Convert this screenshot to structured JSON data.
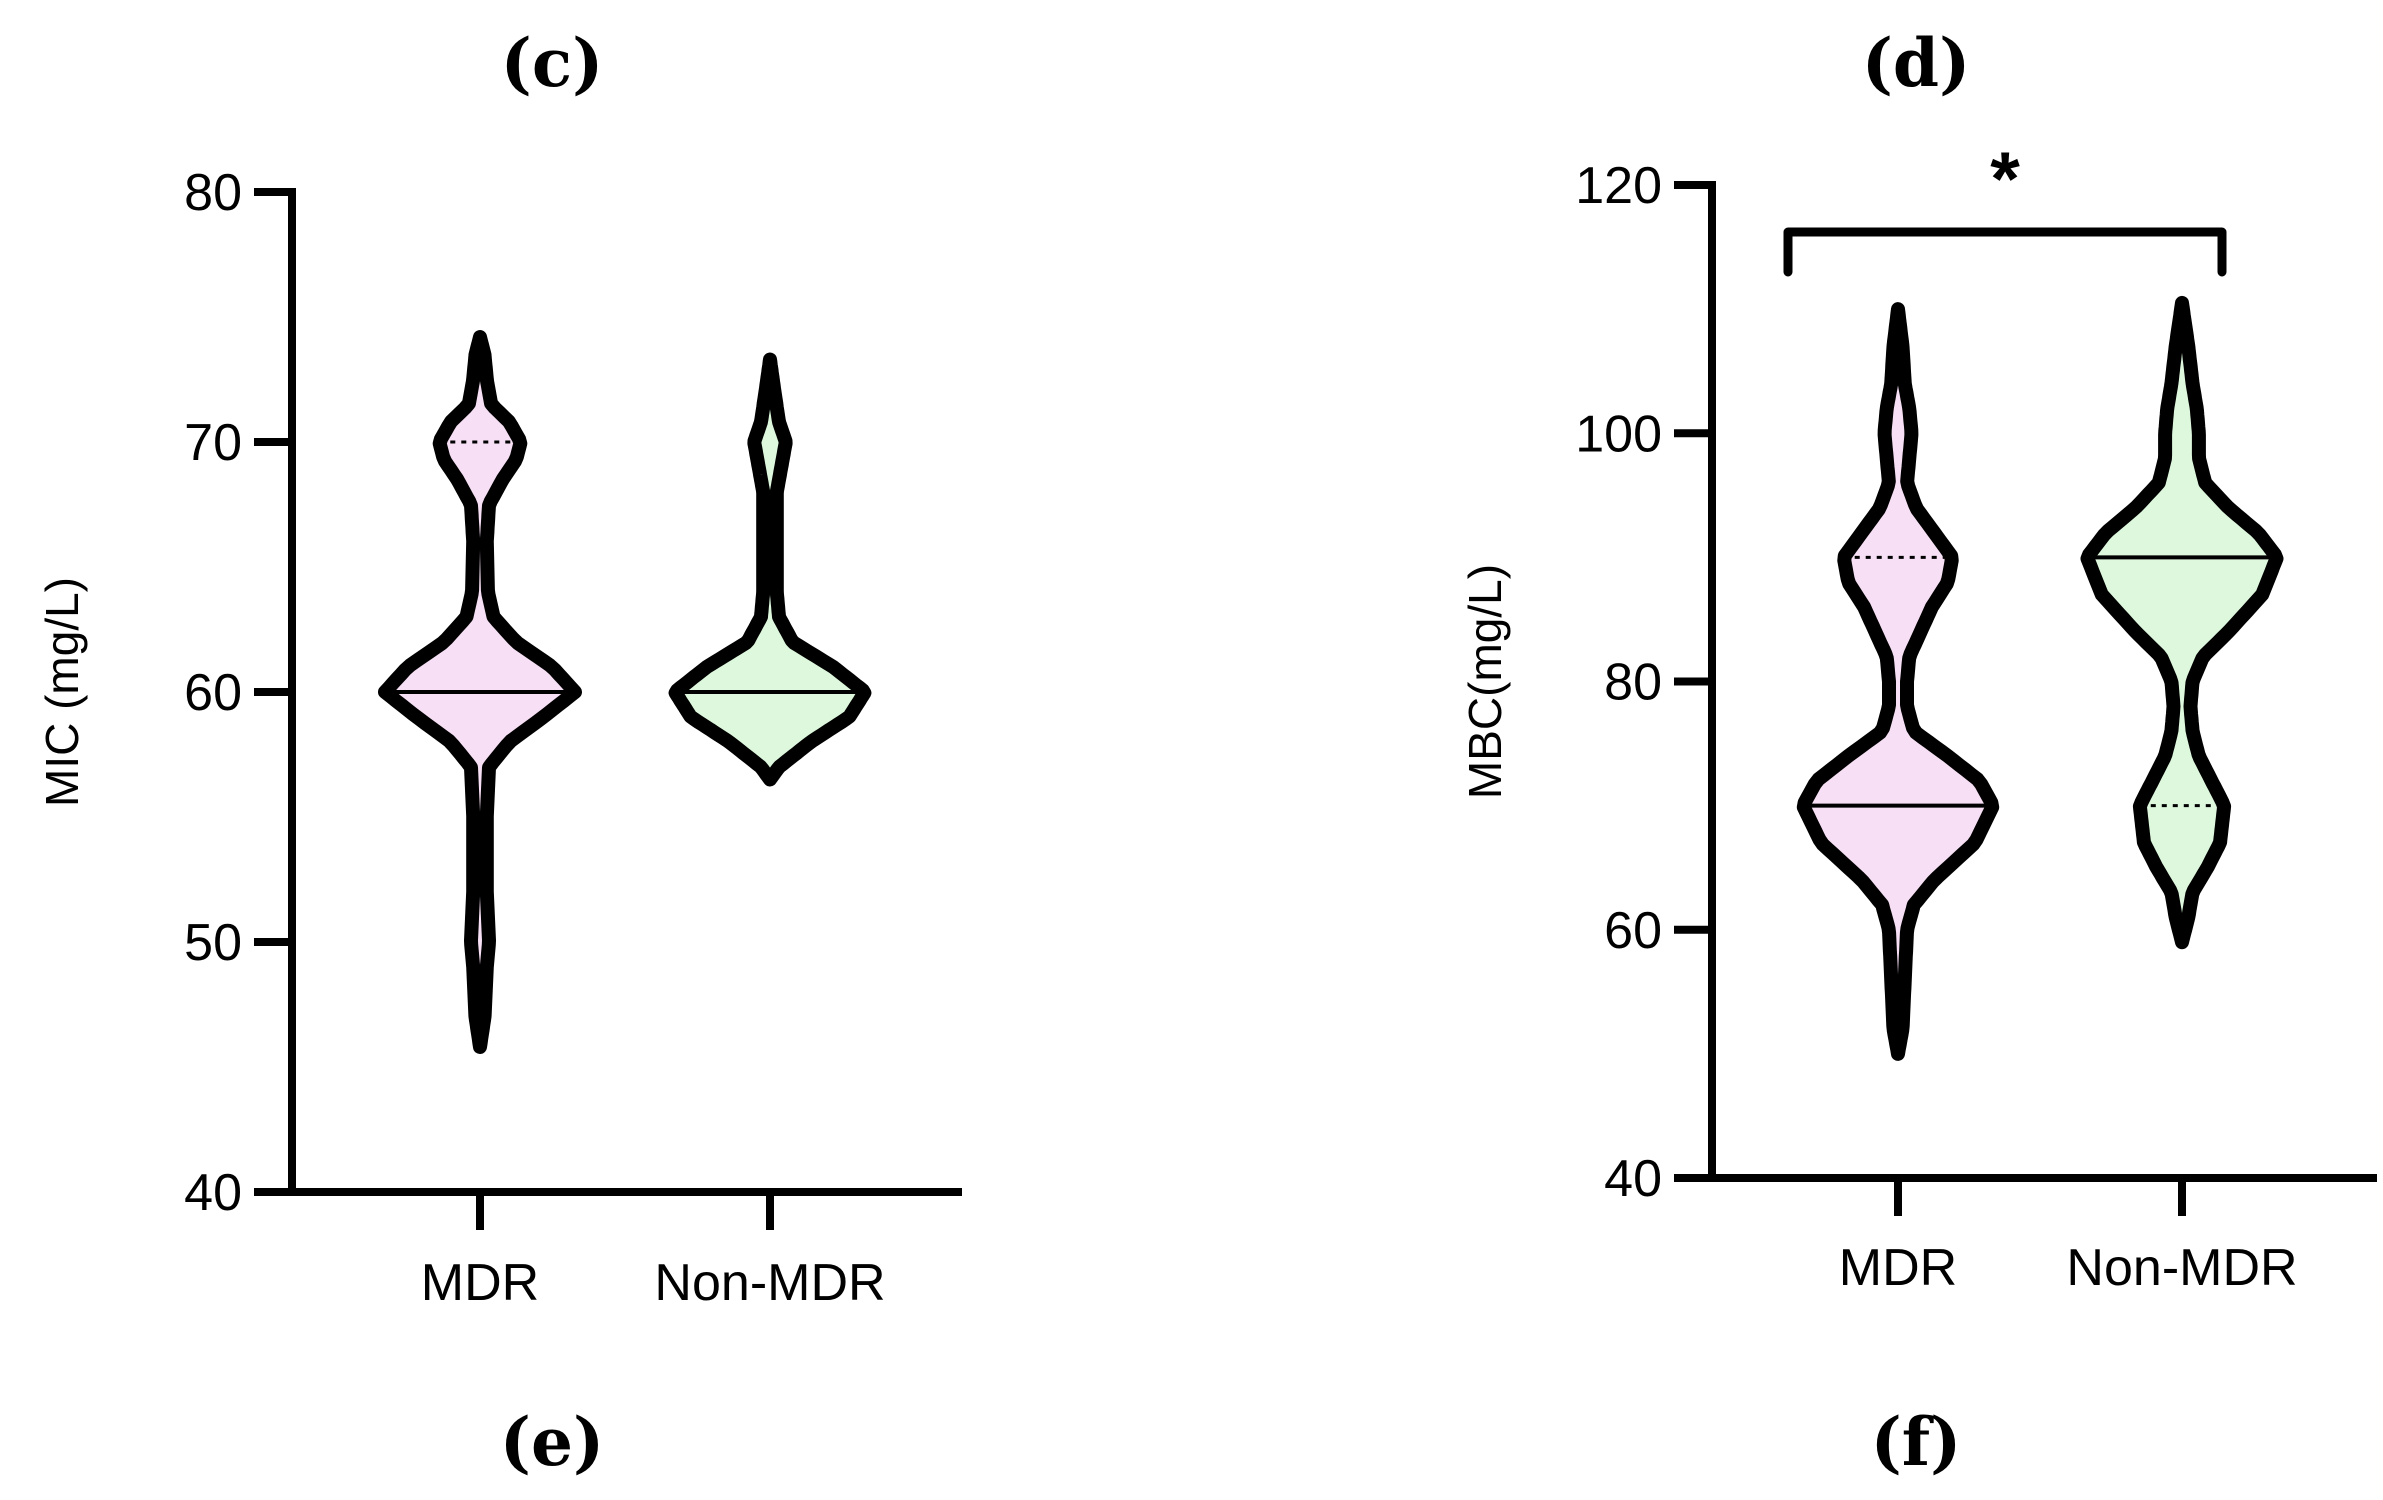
{
  "panel_labels": {
    "top_left": "(c)",
    "top_right": "(d)",
    "bottom_left": "(e)",
    "bottom_right": "(f)"
  },
  "colors": {
    "mdr_fill": "#f7e0f5",
    "non_mdr_fill": "#def8de",
    "outline": "#000000"
  },
  "chart_data": [
    {
      "type": "violin",
      "ylabel": "MIC (mg/L)",
      "xlabel": "",
      "ylim": [
        40,
        80
      ],
      "yticks": [
        40,
        50,
        60,
        70,
        80
      ],
      "categories": [
        "MDR",
        "Non-MDR"
      ],
      "significance": "",
      "series": [
        {
          "name": "MDR",
          "range": [
            45.8,
            74.2
          ],
          "median": 60,
          "quartiles": [
            60,
            70
          ],
          "density": [
            [
              45.8,
              0
            ],
            [
              47,
              0.02
            ],
            [
              49,
              0.03
            ],
            [
              50,
              0.04
            ],
            [
              52,
              0.03
            ],
            [
              55,
              0.03
            ],
            [
              57,
              0.04
            ],
            [
              58,
              0.13
            ],
            [
              59,
              0.28
            ],
            [
              60,
              0.42
            ],
            [
              61,
              0.32
            ],
            [
              62,
              0.16
            ],
            [
              63,
              0.06
            ],
            [
              64,
              0.035
            ],
            [
              66,
              0.03
            ],
            [
              67.5,
              0.04
            ],
            [
              68.5,
              0.1
            ],
            [
              69.3,
              0.16
            ],
            [
              70,
              0.18
            ],
            [
              70.8,
              0.13
            ],
            [
              71.5,
              0.05
            ],
            [
              72.5,
              0.03
            ],
            [
              73.5,
              0.02
            ],
            [
              74.2,
              0
            ]
          ]
        },
        {
          "name": "Non-MDR",
          "range": [
            56.5,
            73.3
          ],
          "median": 60,
          "quartiles": [
            60,
            60
          ],
          "density": [
            [
              56.5,
              0
            ],
            [
              57,
              0.04
            ],
            [
              58,
              0.18
            ],
            [
              59,
              0.35
            ],
            [
              60,
              0.42
            ],
            [
              61,
              0.28
            ],
            [
              62,
              0.1
            ],
            [
              63,
              0.04
            ],
            [
              64,
              0.03
            ],
            [
              66,
              0.03
            ],
            [
              68,
              0.03
            ],
            [
              69,
              0.05
            ],
            [
              70,
              0.07
            ],
            [
              70.8,
              0.04
            ],
            [
              72,
              0.02
            ],
            [
              73.3,
              0
            ]
          ]
        }
      ]
    },
    {
      "type": "violin",
      "ylabel": "MBC(mg/L)",
      "xlabel": "",
      "ylim": [
        40,
        120
      ],
      "yticks": [
        40,
        60,
        80,
        100,
        120
      ],
      "categories": [
        "MDR",
        "Non-MDR"
      ],
      "significance": "*",
      "series": [
        {
          "name": "MDR",
          "range": [
            50,
            110
          ],
          "median": 70,
          "quartiles": [
            70,
            90
          ],
          "density": [
            [
              50,
              0
            ],
            [
              52,
              0.02
            ],
            [
              56,
              0.03
            ],
            [
              60,
              0.04
            ],
            [
              62,
              0.07
            ],
            [
              64,
              0.16
            ],
            [
              67,
              0.34
            ],
            [
              70,
              0.42
            ],
            [
              72,
              0.36
            ],
            [
              74,
              0.22
            ],
            [
              76,
              0.07
            ],
            [
              78,
              0.04
            ],
            [
              80,
              0.04
            ],
            [
              82,
              0.05
            ],
            [
              84,
              0.1
            ],
            [
              86,
              0.15
            ],
            [
              88,
              0.22
            ],
            [
              90,
              0.24
            ],
            [
              92,
              0.16
            ],
            [
              94,
              0.08
            ],
            [
              96,
              0.04
            ],
            [
              98,
              0.05
            ],
            [
              100,
              0.06
            ],
            [
              102,
              0.05
            ],
            [
              104,
              0.03
            ],
            [
              107,
              0.02
            ],
            [
              110,
              0
            ]
          ]
        },
        {
          "name": "Non-MDR",
          "range": [
            59,
            110.5
          ],
          "median": 90,
          "quartiles": [
            70,
            90
          ],
          "density": [
            [
              59,
              0
            ],
            [
              61,
              0.03
            ],
            [
              63,
              0.05
            ],
            [
              65,
              0.12
            ],
            [
              67,
              0.18
            ],
            [
              70,
              0.2
            ],
            [
              72,
              0.14
            ],
            [
              74,
              0.08
            ],
            [
              76,
              0.05
            ],
            [
              78,
              0.04
            ],
            [
              80,
              0.05
            ],
            [
              82,
              0.1
            ],
            [
              84,
              0.22
            ],
            [
              87,
              0.38
            ],
            [
              90,
              0.45
            ],
            [
              92,
              0.36
            ],
            [
              94,
              0.22
            ],
            [
              96,
              0.11
            ],
            [
              98,
              0.08
            ],
            [
              100,
              0.08
            ],
            [
              102,
              0.07
            ],
            [
              104,
              0.05
            ],
            [
              107,
              0.03
            ],
            [
              110.5,
              0
            ]
          ]
        }
      ]
    }
  ]
}
